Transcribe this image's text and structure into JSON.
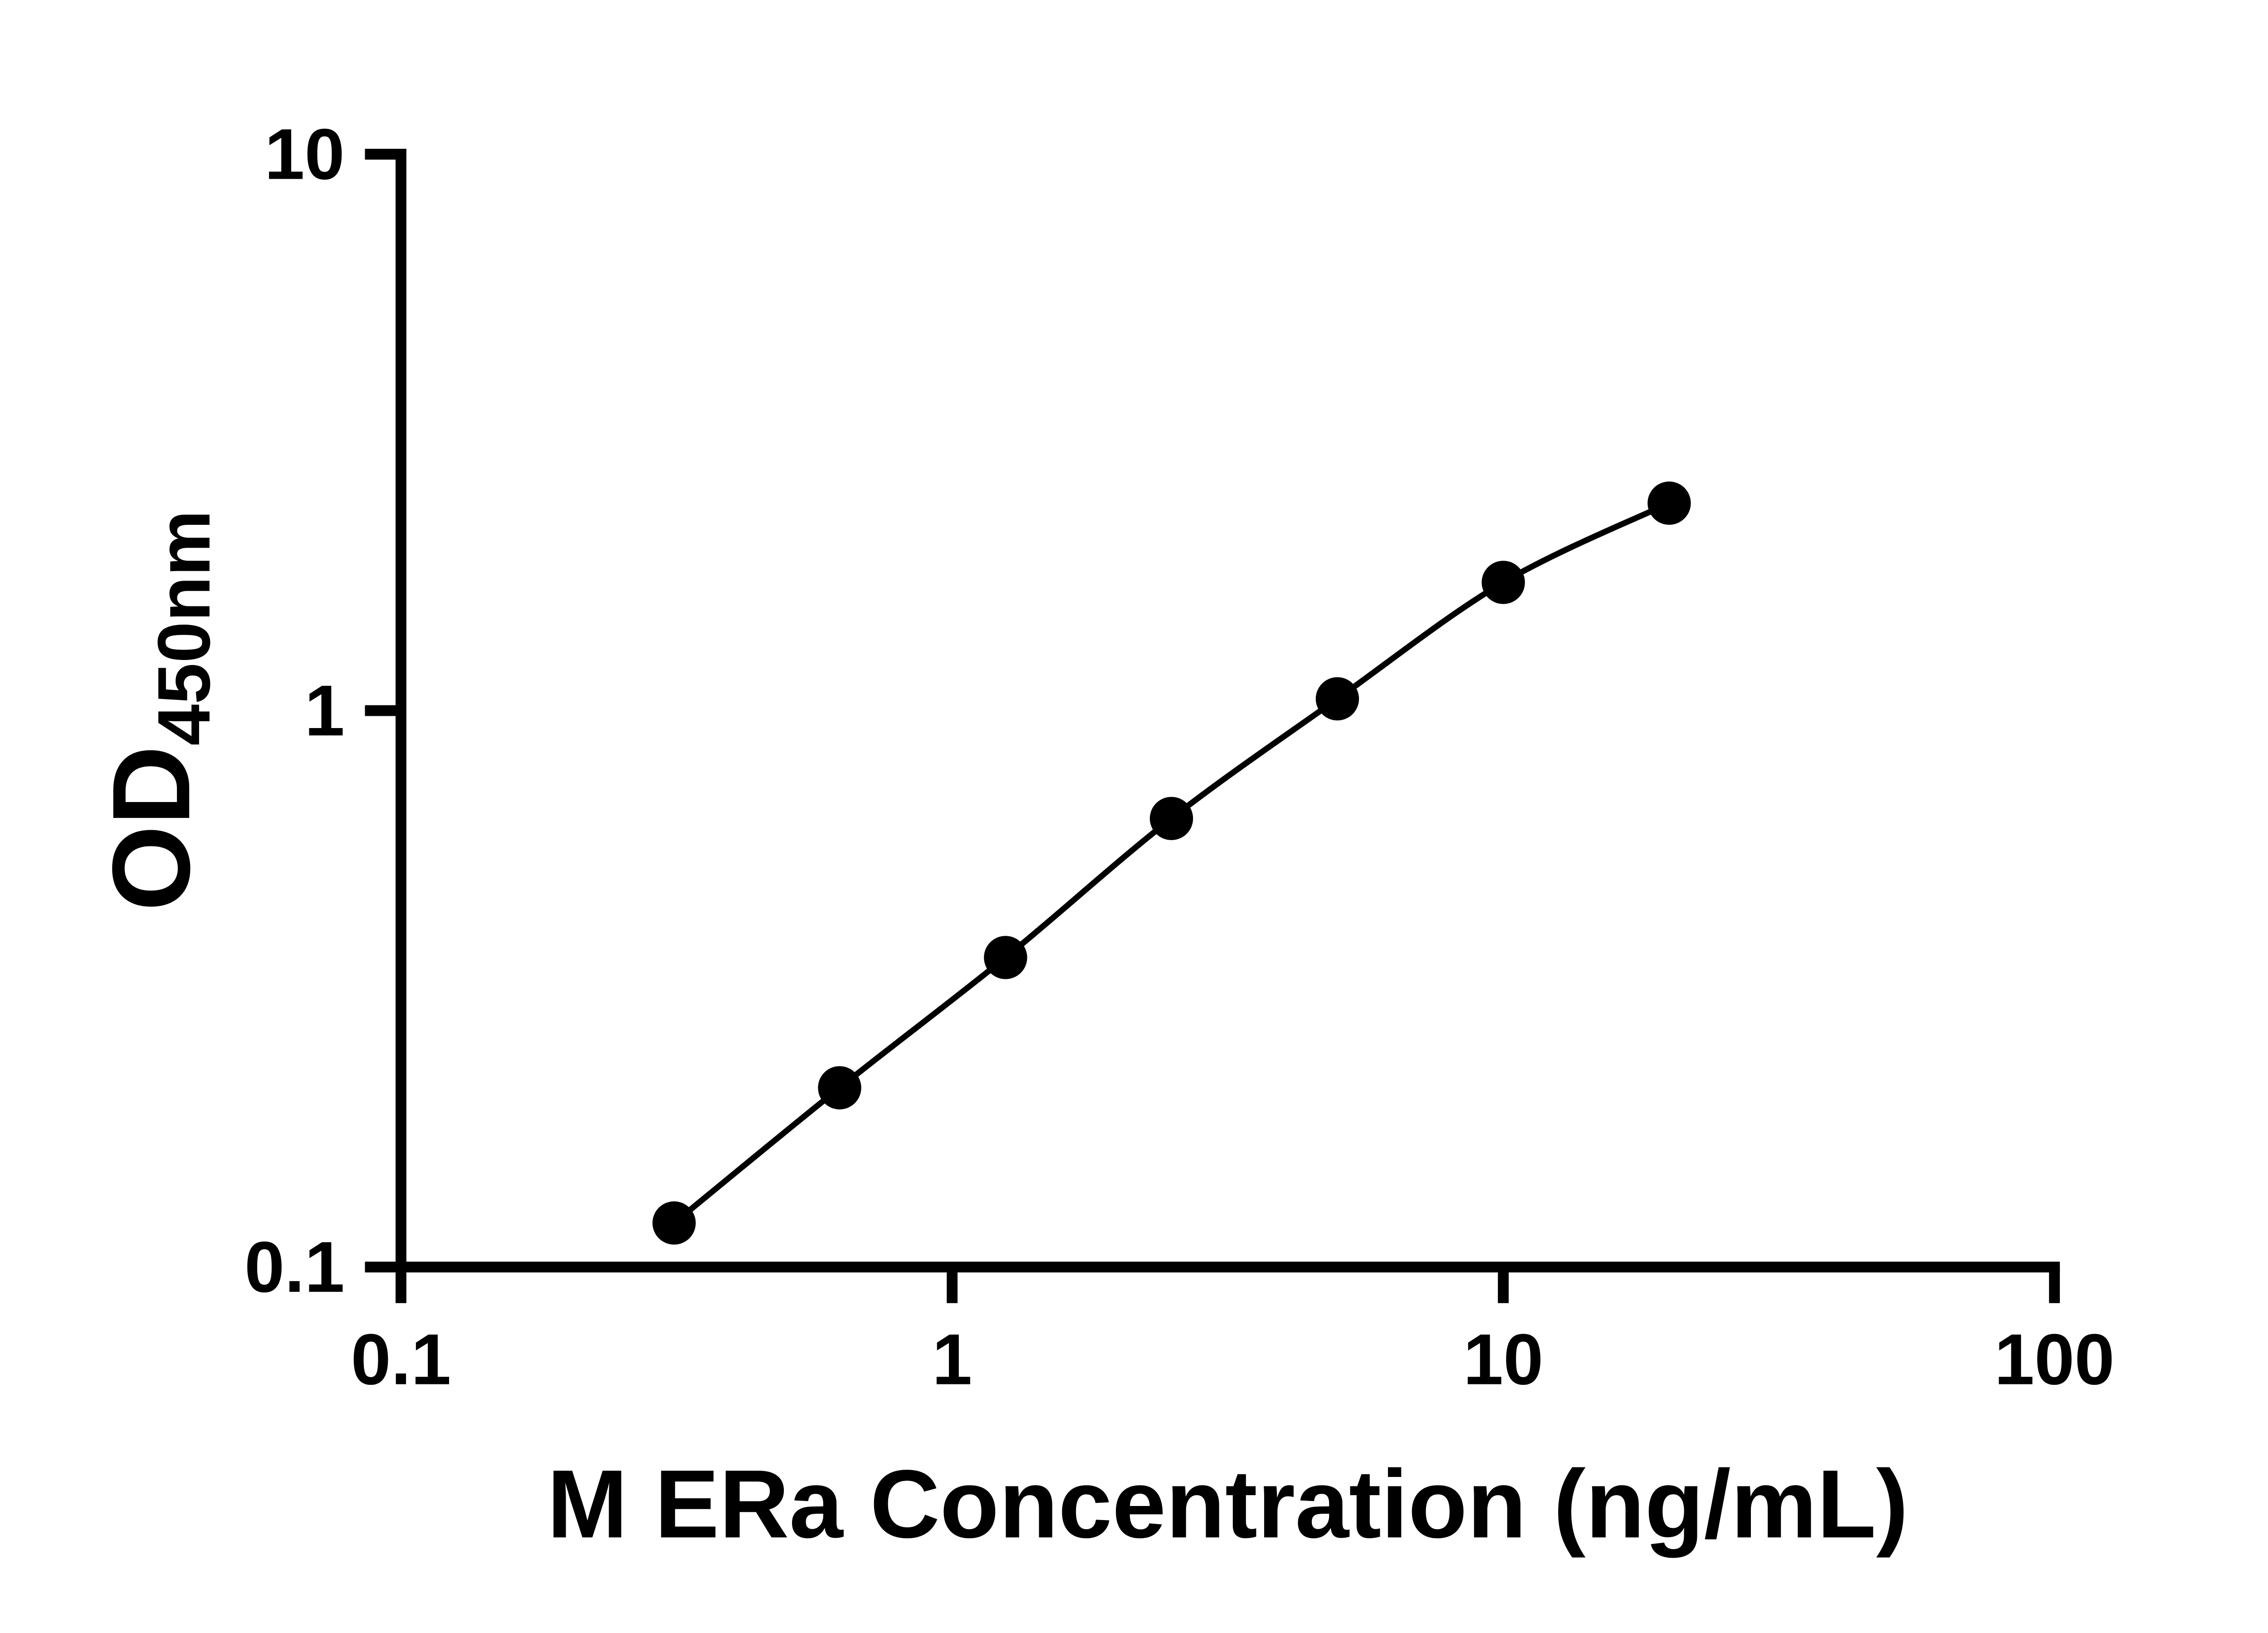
{
  "chart_data": {
    "type": "scatter",
    "title": "",
    "xlabel": "M ERa Concentration (ng/mL)",
    "ylabel_main": "OD",
    "ylabel_sub": "450nm",
    "xscale": "log",
    "yscale": "log",
    "xlim": [
      0.1,
      100
    ],
    "ylim": [
      0.1,
      10
    ],
    "grid": false,
    "legend": false,
    "x": [
      0.313,
      0.625,
      1.25,
      2.5,
      5,
      10,
      20
    ],
    "y": [
      0.12,
      0.21,
      0.36,
      0.64,
      1.05,
      1.7,
      2.36
    ],
    "x_ticks": [
      {
        "value": 0.1,
        "label": "0.1"
      },
      {
        "value": 1,
        "label": "1"
      },
      {
        "value": 10,
        "label": "10"
      },
      {
        "value": 100,
        "label": "100"
      }
    ],
    "y_ticks": [
      {
        "value": 0.1,
        "label": "0.1"
      },
      {
        "value": 1,
        "label": "1"
      },
      {
        "value": 10,
        "label": "10"
      }
    ],
    "line_color": "#000000",
    "marker_color": "#000000",
    "axis_color": "#000000",
    "background_color": "#ffffff"
  }
}
